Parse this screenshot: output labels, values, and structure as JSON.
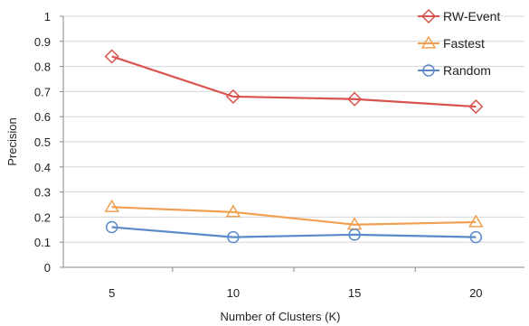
{
  "chart_data": {
    "type": "line",
    "title": "",
    "xlabel": "Number of Clusters (K)",
    "ylabel": "Precision",
    "x": [
      5,
      10,
      15,
      20
    ],
    "x_tick_labels": [
      "5",
      "10",
      "15",
      "20"
    ],
    "ylim": [
      0,
      1
    ],
    "y_tick_labels": [
      "0",
      "0.1",
      "0.2",
      "0.3",
      "0.4",
      "0.5",
      "0.6",
      "0.7",
      "0.8",
      "0.9",
      "1"
    ],
    "grid": "horizontal",
    "legend_position": "top-right",
    "series": [
      {
        "name": "RW-Event",
        "values": [
          0.84,
          0.68,
          0.67,
          0.64
        ],
        "color": "#d9534f",
        "marker": "diamond"
      },
      {
        "name": "Fastest",
        "values": [
          0.24,
          0.22,
          0.17,
          0.18
        ],
        "color": "#f0a050",
        "marker": "triangle"
      },
      {
        "name": "Random",
        "values": [
          0.16,
          0.12,
          0.13,
          0.12
        ],
        "color": "#5b8ac8",
        "marker": "circle"
      }
    ]
  }
}
